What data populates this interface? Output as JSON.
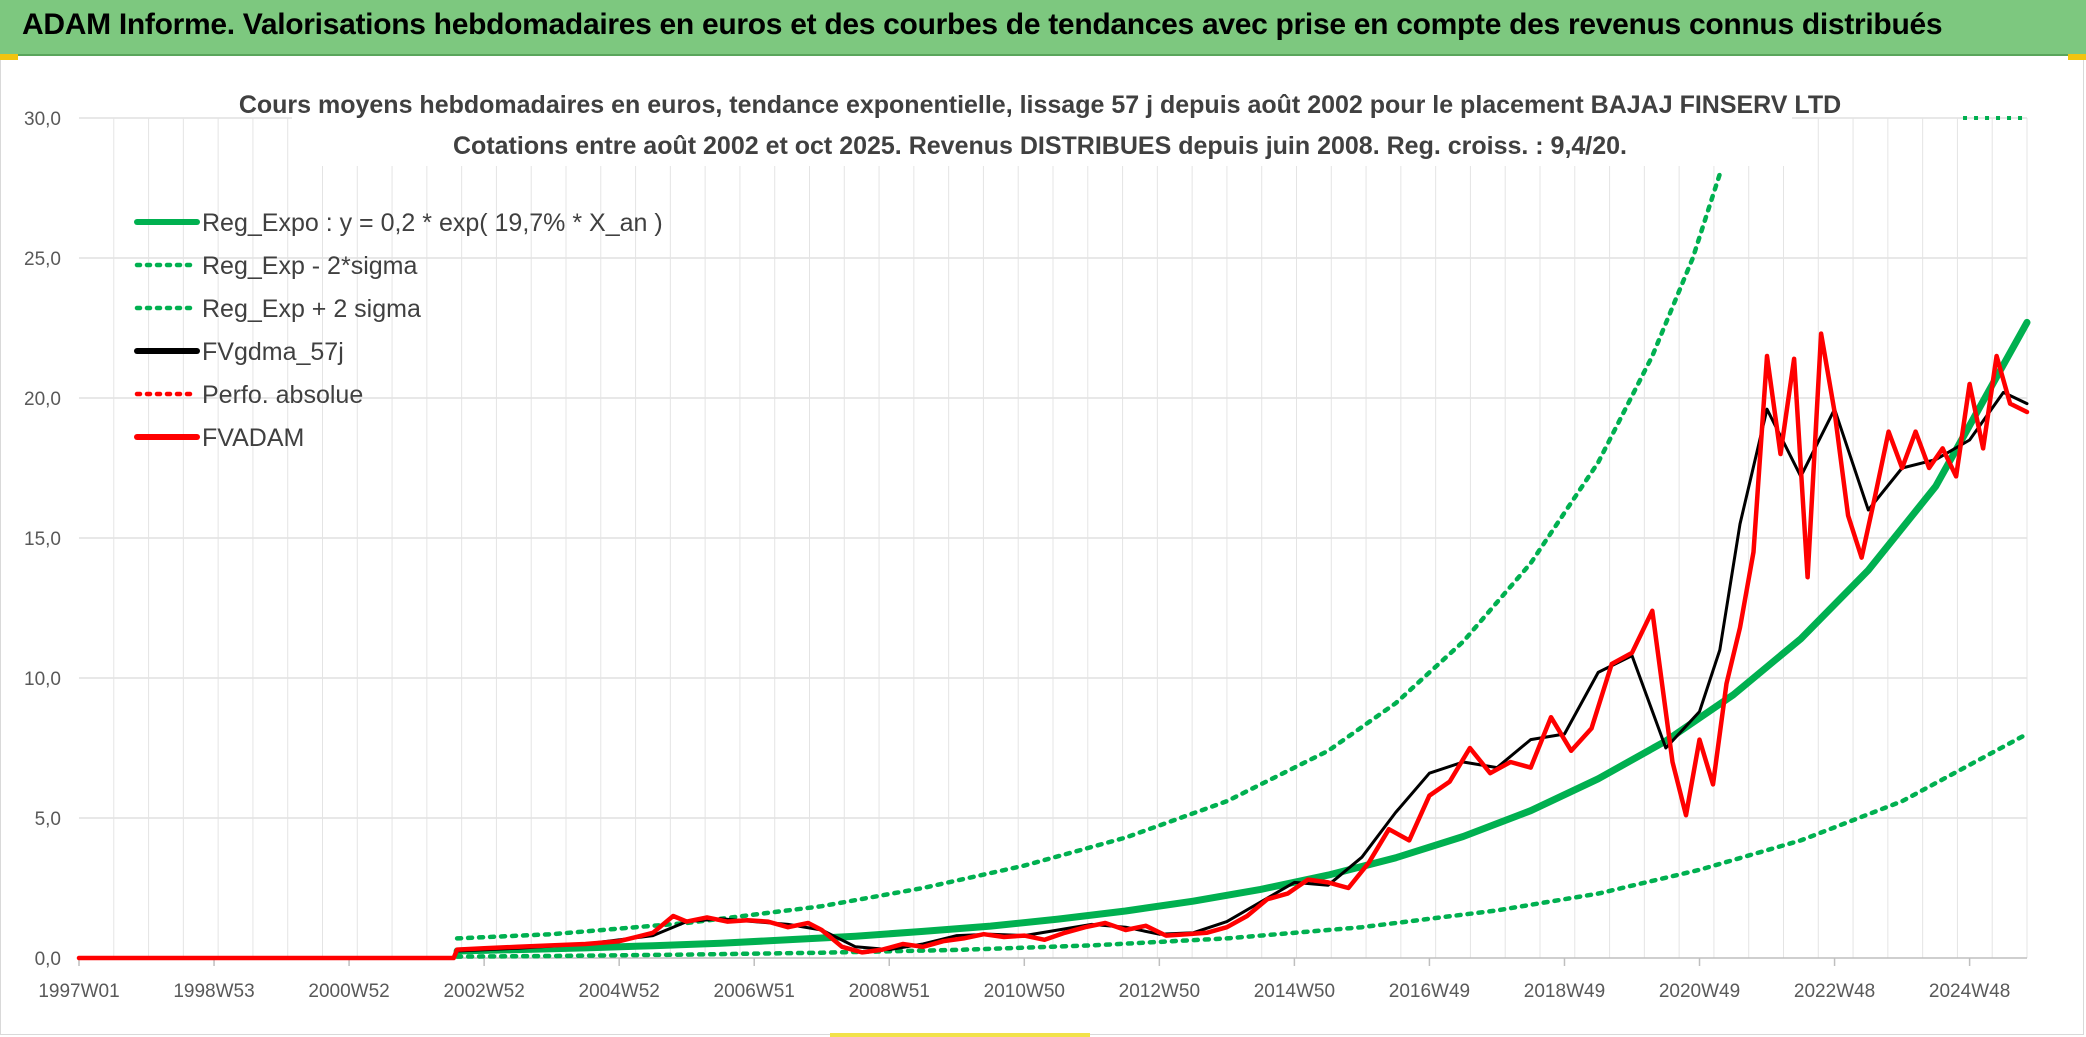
{
  "header": {
    "banner_title": "ADAM Informe. Valorisations hebdomadaires en euros et des courbes de tendances avec prise en compte des revenus connus distribués"
  },
  "colors": {
    "banner": "#7dc87f",
    "green": "#00b050",
    "red": "#ff0000",
    "black": "#000000",
    "grid": "#d9d9d9"
  },
  "chart_data": {
    "type": "line",
    "title_line1": "Cours moyens hebdomadaires en euros, tendance exponentielle, lissage 57 j depuis août 2002 pour le placement BAJAJ FINSERV LTD",
    "title_line2": "Cotations entre août 2002 et oct 2025. Revenus DISTRIBUES depuis juin 2008. Reg. croiss. : 9,4/20.",
    "xlabel": "",
    "ylabel": "",
    "ylim": [
      0,
      30
    ],
    "xlim": [
      1997.0,
      2025.85
    ],
    "y_ticks": [
      "0,0",
      "5,0",
      "10,0",
      "15,0",
      "20,0",
      "25,0",
      "30,0"
    ],
    "x_ticks": [
      {
        "label": "1997W01",
        "year": 1997.0
      },
      {
        "label": "1998W53",
        "year": 1999.0
      },
      {
        "label": "2000W52",
        "year": 2001.0
      },
      {
        "label": "2002W52",
        "year": 2003.0
      },
      {
        "label": "2004W52",
        "year": 2005.0
      },
      {
        "label": "2006W51",
        "year": 2007.0
      },
      {
        "label": "2008W51",
        "year": 2009.0
      },
      {
        "label": "2010W50",
        "year": 2011.0
      },
      {
        "label": "2012W50",
        "year": 2013.0
      },
      {
        "label": "2014W50",
        "year": 2015.0
      },
      {
        "label": "2016W49",
        "year": 2017.0
      },
      {
        "label": "2018W49",
        "year": 2019.0
      },
      {
        "label": "2020W49",
        "year": 2021.0
      },
      {
        "label": "2022W48",
        "year": 2023.0
      },
      {
        "label": "2024W48",
        "year": 2025.0
      }
    ],
    "legend": {
      "placement": "top-left",
      "entries": [
        {
          "key": "reg_expo",
          "label": "Reg_Expo : y = 0,2 * exp( 19,7% *  X_an )",
          "color": "#00b050",
          "style": "solid"
        },
        {
          "key": "reg_minus",
          "label": "Reg_Exp - 2*sigma",
          "color": "#00b050",
          "style": "dotted"
        },
        {
          "key": "reg_plus",
          "label": "Reg_Exp + 2 sigma",
          "color": "#00b050",
          "style": "dotted"
        },
        {
          "key": "fvgdma",
          "label": "FVgdma_57j",
          "color": "#000000",
          "style": "solid"
        },
        {
          "key": "perfo",
          "label": "Perfo. absolue",
          "color": "#ff0000",
          "style": "dotted"
        },
        {
          "key": "fvadam",
          "label": "FVADAM",
          "color": "#ff0000",
          "style": "solid"
        }
      ]
    },
    "series": [
      {
        "name": "Reg_Expo",
        "x": [
          2002.6,
          2003.5,
          2004.5,
          2005.5,
          2006.5,
          2007.5,
          2008.5,
          2009.5,
          2010.5,
          2011.5,
          2012.5,
          2013.5,
          2014.5,
          2015.5,
          2016.5,
          2017.5,
          2018.5,
          2019.5,
          2020.5,
          2021.5,
          2022.5,
          2023.5,
          2024.5,
          2025.85
        ],
        "values": [
          0.25,
          0.3,
          0.36,
          0.44,
          0.53,
          0.65,
          0.78,
          0.95,
          1.14,
          1.39,
          1.68,
          2.03,
          2.45,
          2.96,
          3.58,
          4.34,
          5.26,
          6.4,
          7.75,
          9.4,
          11.4,
          13.85,
          16.85,
          22.7
        ]
      },
      {
        "name": "Reg_Exp - 2*sigma",
        "x": [
          2002.6,
          2004.0,
          2006.0,
          2008.0,
          2010.0,
          2012.0,
          2014.0,
          2016.0,
          2018.0,
          2019.5,
          2021.0,
          2022.5,
          2024.0,
          2025.85
        ],
        "values": [
          0.05,
          0.07,
          0.12,
          0.19,
          0.29,
          0.45,
          0.7,
          1.1,
          1.7,
          2.3,
          3.15,
          4.2,
          5.6,
          8.0
        ]
      },
      {
        "name": "Reg_Exp + 2 sigma",
        "x": [
          2002.6,
          2004.0,
          2006.0,
          2008.0,
          2009.5,
          2011.0,
          2012.5,
          2014.0,
          2015.5,
          2016.5,
          2017.5,
          2018.5,
          2019.5,
          2020.3,
          2020.9,
          2021.3
        ],
        "values": [
          0.7,
          0.85,
          1.25,
          1.85,
          2.5,
          3.3,
          4.3,
          5.6,
          7.4,
          9.1,
          11.3,
          14.1,
          17.7,
          21.5,
          25.0,
          28.0
        ],
        "clip_note": "30,0"
      },
      {
        "name": "FVgdma_57j",
        "x": [
          1997.0,
          2002.55,
          2002.6,
          2003.5,
          2004.5,
          2005.5,
          2006.0,
          2006.5,
          2007.0,
          2007.5,
          2008.0,
          2008.5,
          2009.0,
          2009.5,
          2010.0,
          2010.5,
          2011.0,
          2011.5,
          2012.0,
          2012.5,
          2013.0,
          2013.5,
          2014.0,
          2014.5,
          2015.0,
          2015.5,
          2016.0,
          2016.5,
          2017.0,
          2017.5,
          2018.0,
          2018.5,
          2019.0,
          2019.5,
          2020.0,
          2020.5,
          2021.0,
          2021.3,
          2021.6,
          2022.0,
          2022.5,
          2023.0,
          2023.5,
          2024.0,
          2024.5,
          2025.0,
          2025.5,
          2025.85
        ],
        "values": [
          0.0,
          0.0,
          0.25,
          0.35,
          0.5,
          0.8,
          1.3,
          1.4,
          1.3,
          1.2,
          1.0,
          0.4,
          0.3,
          0.5,
          0.8,
          0.85,
          0.8,
          1.0,
          1.2,
          1.1,
          0.85,
          0.9,
          1.3,
          2.0,
          2.7,
          2.6,
          3.6,
          5.2,
          6.6,
          7.0,
          6.8,
          7.8,
          8.0,
          10.2,
          10.8,
          7.5,
          8.8,
          11.0,
          15.5,
          19.6,
          17.2,
          19.6,
          16.0,
          17.5,
          17.8,
          18.5,
          20.2,
          19.8
        ]
      },
      {
        "name": "FVADAM",
        "x": [
          1997.0,
          2002.55,
          2002.6,
          2003.0,
          2003.5,
          2004.0,
          2004.5,
          2005.0,
          2005.5,
          2005.8,
          2006.0,
          2006.3,
          2006.6,
          2006.9,
          2007.2,
          2007.5,
          2007.8,
          2008.0,
          2008.3,
          2008.6,
          2008.9,
          2009.2,
          2009.5,
          2009.8,
          2010.1,
          2010.4,
          2010.7,
          2011.0,
          2011.3,
          2011.6,
          2011.9,
          2012.2,
          2012.5,
          2012.8,
          2013.1,
          2013.4,
          2013.7,
          2014.0,
          2014.3,
          2014.6,
          2014.9,
          2015.2,
          2015.5,
          2015.8,
          2016.1,
          2016.4,
          2016.7,
          2017.0,
          2017.3,
          2017.6,
          2017.9,
          2018.2,
          2018.5,
          2018.8,
          2019.1,
          2019.4,
          2019.7,
          2020.0,
          2020.3,
          2020.6,
          2020.8,
          2021.0,
          2021.2,
          2021.4,
          2021.6,
          2021.8,
          2022.0,
          2022.2,
          2022.4,
          2022.6,
          2022.8,
          2023.0,
          2023.2,
          2023.4,
          2023.6,
          2023.8,
          2024.0,
          2024.2,
          2024.4,
          2024.6,
          2024.8,
          2025.0,
          2025.2,
          2025.4,
          2025.6,
          2025.85
        ],
        "values": [
          0.0,
          0.0,
          0.3,
          0.35,
          0.4,
          0.45,
          0.5,
          0.6,
          0.9,
          1.5,
          1.3,
          1.45,
          1.3,
          1.35,
          1.3,
          1.1,
          1.25,
          1.0,
          0.4,
          0.2,
          0.3,
          0.5,
          0.4,
          0.6,
          0.7,
          0.85,
          0.75,
          0.8,
          0.65,
          0.9,
          1.1,
          1.25,
          1.0,
          1.15,
          0.8,
          0.85,
          0.9,
          1.1,
          1.5,
          2.1,
          2.3,
          2.8,
          2.7,
          2.5,
          3.4,
          4.6,
          4.2,
          5.8,
          6.3,
          7.5,
          6.6,
          7.0,
          6.8,
          8.6,
          7.4,
          8.2,
          10.5,
          10.9,
          12.4,
          7.0,
          5.1,
          7.8,
          6.2,
          9.8,
          11.8,
          14.5,
          21.5,
          18.0,
          21.4,
          13.6,
          22.3,
          19.5,
          15.8,
          14.3,
          16.5,
          18.8,
          17.5,
          18.8,
          17.5,
          18.2,
          17.2,
          20.5,
          18.2,
          21.5,
          19.8,
          19.5
        ]
      }
    ]
  }
}
